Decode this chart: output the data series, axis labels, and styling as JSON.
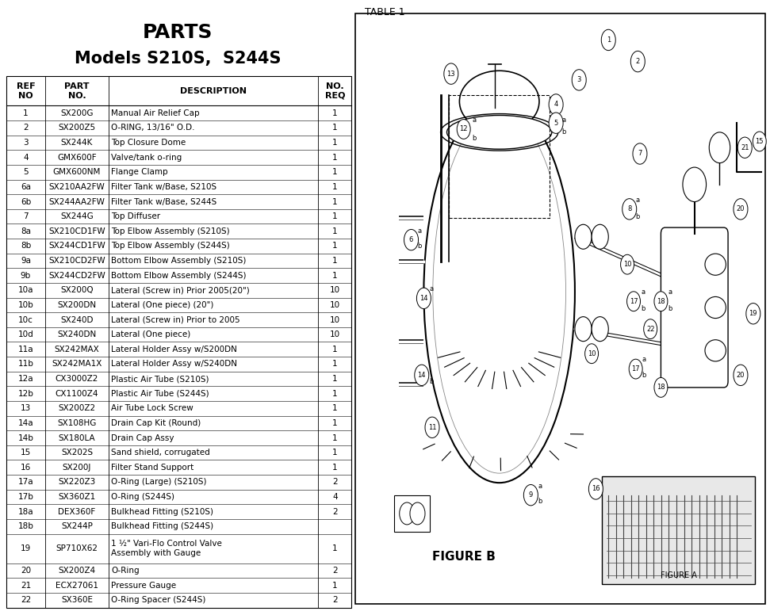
{
  "title_line1": "PARTS",
  "title_line2": "Models S210S,  S244S",
  "top_label": "TABLE 1",
  "columns": [
    "REF\nNO",
    "PART\nNO.",
    "DESCRIPTION",
    "NO.\nREQ"
  ],
  "rows": [
    [
      "1",
      "SX200G",
      "Manual Air Relief Cap",
      "1"
    ],
    [
      "2",
      "SX200Z5",
      "O-RING, 13/16\" O.D.",
      "1"
    ],
    [
      "3",
      "SX244K",
      "Top Closure Dome",
      "1"
    ],
    [
      "4",
      "GMX600F",
      "Valve/tank o-ring",
      "1"
    ],
    [
      "5",
      "GMX600NM",
      "Flange Clamp",
      "1"
    ],
    [
      "6a",
      "SX210AA2FW",
      "Filter Tank w/Base, S210S",
      "1"
    ],
    [
      "6b",
      "SX244AA2FW",
      "Filter Tank w/Base, S244S",
      "1"
    ],
    [
      "7",
      "SX244G",
      "Top Diffuser",
      "1"
    ],
    [
      "8a",
      "SX210CD1FW",
      "Top Elbow Assembly (S210S)",
      "1"
    ],
    [
      "8b",
      "SX244CD1FW",
      "Top Elbow Assembly (S244S)",
      "1"
    ],
    [
      "9a",
      "SX210CD2FW",
      "Bottom Elbow Assembly (S210S)",
      "1"
    ],
    [
      "9b",
      "SX244CD2FW",
      "Bottom Elbow Assembly (S244S)",
      "1"
    ],
    [
      "10a",
      "SX200Q",
      "Lateral (Screw in) Prior 2005(20\")",
      "10"
    ],
    [
      "10b",
      "SX200DN",
      "Lateral (One piece) (20\")",
      "10"
    ],
    [
      "10c",
      "SX240D",
      "Lateral (Screw in) Prior to 2005",
      "10"
    ],
    [
      "10d",
      "SX240DN",
      "Lateral (One piece)",
      "10"
    ],
    [
      "11a",
      "SX242MAX",
      "Lateral Holder Assy w/S200DN",
      "1"
    ],
    [
      "11b",
      "SX242MA1X",
      "Lateral Holder Assy w/S240DN",
      "1"
    ],
    [
      "12a",
      "CX3000Z2",
      "Plastic Air Tube (S210S)",
      "1"
    ],
    [
      "12b",
      "CX1100Z4",
      "Plastic Air Tube (S244S)",
      "1"
    ],
    [
      "13",
      "SX200Z2",
      "Air Tube Lock Screw",
      "1"
    ],
    [
      "14a",
      "SX108HG",
      "Drain Cap Kit (Round)",
      "1"
    ],
    [
      "14b",
      "SX180LA",
      "Drain Cap Assy",
      "1"
    ],
    [
      "15",
      "SX202S",
      "Sand shield, corrugated",
      "1"
    ],
    [
      "16",
      "SX200J",
      "Filter Stand Support",
      "1"
    ],
    [
      "17a",
      "SX220Z3",
      "O-Ring (Large) (S210S)",
      "2"
    ],
    [
      "17b",
      "SX360Z1",
      "O-Ring (S244S)",
      "4"
    ],
    [
      "18a",
      "DEX360F",
      "Bulkhead Fitting (S210S)",
      "2"
    ],
    [
      "18b",
      "SX244P",
      "Bulkhead Fitting (S244S)",
      ""
    ],
    [
      "19",
      "SP710X62",
      "1 ½\" Vari-Flo Control Valve\nAssembly with Gauge",
      "1"
    ],
    [
      "20",
      "SX200Z4",
      "O-Ring",
      "2"
    ],
    [
      "21",
      "ECX27061",
      "Pressure Gauge",
      "1"
    ],
    [
      "22",
      "SX360E",
      "O-Ring Spacer (S244S)",
      "2"
    ]
  ],
  "bg_color": "#ffffff"
}
